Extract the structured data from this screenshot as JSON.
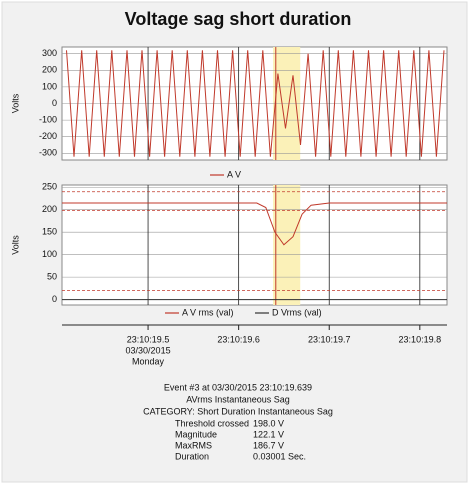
{
  "chart_data": [
    {
      "type": "line",
      "title": "Voltage sag short duration",
      "ylabel": "Volts",
      "xlim": [
        19.405,
        19.83
      ],
      "ylim": [
        -340,
        340
      ],
      "yticks": [
        300,
        200,
        100,
        0,
        -100,
        -200,
        -300
      ],
      "highlight": [
        19.638,
        19.668
      ],
      "event_line": 19.641,
      "series": [
        {
          "name": "A V",
          "color": "#c0392b",
          "x": [
            19.41,
            19.4183,
            19.4267,
            19.435,
            19.4433,
            19.4517,
            19.46,
            19.4683,
            19.4767,
            19.485,
            19.4933,
            19.5017,
            19.51,
            19.5183,
            19.5267,
            19.535,
            19.5433,
            19.5517,
            19.56,
            19.5683,
            19.5767,
            19.585,
            19.5933,
            19.6017,
            19.61,
            19.6183,
            19.6267,
            19.635,
            19.6433,
            19.6517,
            19.66,
            19.6683,
            19.6767,
            19.685,
            19.6933,
            19.7017,
            19.71,
            19.7183,
            19.7267,
            19.735,
            19.7433,
            19.7517,
            19.76,
            19.7683,
            19.7767,
            19.785,
            19.7933,
            19.8017,
            19.81,
            19.8183,
            19.8267
          ],
          "values": [
            320,
            -320,
            320,
            -320,
            320,
            -320,
            320,
            -320,
            320,
            -320,
            320,
            -320,
            320,
            -320,
            320,
            -320,
            320,
            -320,
            320,
            -320,
            320,
            -320,
            320,
            -320,
            320,
            -320,
            320,
            -320,
            180,
            -150,
            170,
            -250,
            300,
            -320,
            320,
            -320,
            320,
            -320,
            320,
            -320,
            320,
            -320,
            320,
            -320,
            320,
            -320,
            320,
            -320,
            320,
            -320,
            320
          ]
        }
      ]
    },
    {
      "type": "line",
      "ylabel": "Volts",
      "xlim": [
        19.405,
        19.83
      ],
      "ylim": [
        -12,
        255
      ],
      "yticks": [
        250,
        200,
        150,
        100,
        50,
        0
      ],
      "xticks": [
        {
          "value": 19.5,
          "label": "23:10:19.5"
        },
        {
          "value": 19.6,
          "label": "23:10:19.6"
        },
        {
          "value": 19.7,
          "label": "23:10:19.7"
        },
        {
          "value": 19.8,
          "label": "23:10:19.8"
        }
      ],
      "date_label": "03/30/2015",
      "day_label": "Monday",
      "highlight": [
        19.638,
        19.668
      ],
      "event_line": 19.641,
      "ref_lines": [
        240,
        198,
        20
      ],
      "series": [
        {
          "name": "A V rms (val)",
          "color": "#c0392b",
          "x": [
            19.405,
            19.62,
            19.63,
            19.64,
            19.65,
            19.66,
            19.67,
            19.68,
            19.7,
            19.83
          ],
          "values": [
            215,
            215,
            205,
            150,
            122,
            140,
            190,
            210,
            215,
            215
          ]
        },
        {
          "name": "D Vrms (val)",
          "color": "#333333",
          "x": [
            19.405,
            19.83
          ],
          "values": [
            0,
            0
          ]
        }
      ]
    }
  ],
  "event": {
    "heading": "Event #3 at 03/30/2015 23:10:19.639",
    "type": "AVrms Instantaneous Sag",
    "category": "CATEGORY: Short Duration Instantaneous Sag",
    "rows": [
      [
        "Threshold crossed",
        "198.0 V"
      ],
      [
        "Magnitude",
        "122.1 V"
      ],
      [
        "MaxRMS",
        "186.7 V"
      ],
      [
        "Duration",
        "0.03001 Sec."
      ]
    ]
  }
}
